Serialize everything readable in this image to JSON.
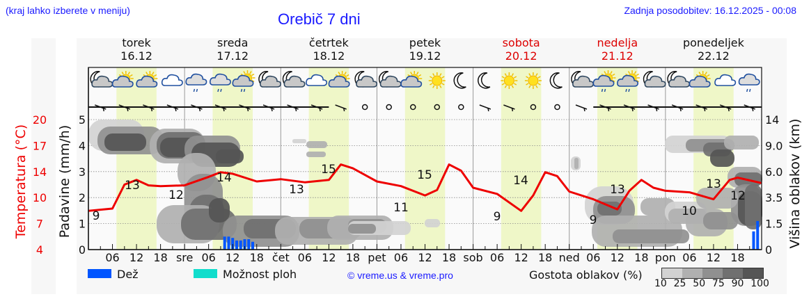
{
  "header": {
    "region_hint": "(kraj lahko izberete v meniju)",
    "title": "Orebič 7 dni",
    "last_update": "Zadnja posodobitev: 16.12.2025 - 00:08"
  },
  "days": [
    {
      "name": "torek",
      "date": "16.12",
      "weekend": false
    },
    {
      "name": "sreda",
      "date": "17.12",
      "weekend": false
    },
    {
      "name": "četrtek",
      "date": "18.12",
      "weekend": false
    },
    {
      "name": "petek",
      "date": "19.12",
      "weekend": false
    },
    {
      "name": "sobota",
      "date": "20.12",
      "weekend": true
    },
    {
      "name": "nedelja",
      "date": "21.12",
      "weekend": true
    },
    {
      "name": "ponedeljek",
      "date": "22.12",
      "weekend": false
    }
  ],
  "weather_icons": [
    "moon-cloud-icon",
    "sun-cloud-icon",
    "sun-cloud-icon",
    "cloud-icon",
    "cloud-rain-icon",
    "cloud-rain-icon",
    "sun-cloud-rain-icon",
    "moon-cloud-icon",
    "moon-cloud-icon",
    "cloud-icon",
    "sun-cloud-icon",
    "moon-cloud-icon",
    "moon-cloud-icon",
    "sun-cloud-icon",
    "sun-icon",
    "moon-icon",
    "moon-icon",
    "sun-icon",
    "sun-icon",
    "moon-icon",
    "moon-cloud-icon",
    "sun-cloud-rain-icon",
    "sun-cloud-rain-icon",
    "moon-cloud-icon",
    "moon-cloud-icon",
    "sun-cloud-icon",
    "cloud-icon",
    "cloud-rain-icon"
  ],
  "axes": {
    "temperature_label": "Temperatura (°C)",
    "temperature_ticks": [
      "20",
      "17",
      "14",
      "10",
      "7",
      "4"
    ],
    "precip_label": "Padavine (mm/h)",
    "precip_ticks": [
      "5",
      "4",
      "3",
      "2",
      "1",
      "0"
    ],
    "cloud_height_label": "Višina oblakov (km)",
    "cloud_height_ticks": [
      "14",
      "9.0",
      "6.0",
      "3.5",
      "1.5",
      "0"
    ],
    "x_ticks": [
      "06",
      "12",
      "18",
      "sre",
      "06",
      "12",
      "18",
      "čet",
      "06",
      "12",
      "18",
      "pet",
      "06",
      "12",
      "18",
      "sob",
      "06",
      "12",
      "18",
      "ned",
      "06",
      "12",
      "18",
      "pon",
      "06",
      "12",
      "18"
    ]
  },
  "legend": {
    "rain_label": "Dež",
    "rain_color": "#0055ff",
    "showers_label": "Možnost ploh",
    "showers_color": "#11ddcc",
    "copyright": "© vreme.us & vreme.pro",
    "cloud_density_label": "Gostota oblakov (%)",
    "cloud_density_ticks": [
      "10",
      "25",
      "50",
      "75",
      "90",
      "100"
    ],
    "cloud_density_colors": [
      "#d2d2d2",
      "#b0b0b0",
      "#909090",
      "#707070",
      "#555555"
    ]
  },
  "chart_data": {
    "type": "line",
    "title": "Orebič 7 dni",
    "xlabel": "",
    "ylabel": "Temperatura (°C)",
    "x_range": [
      "16.12 00:00",
      "22.12 24:00"
    ],
    "series": [
      {
        "name": "Temperatura (°C)",
        "color": "#ee0000",
        "hours": [
          0,
          6,
          9,
          12,
          15,
          18,
          24,
          30,
          33,
          36,
          42,
          48,
          54,
          60,
          63,
          66,
          72,
          78,
          84,
          87,
          90,
          93,
          96,
          102,
          108,
          111,
          114,
          117,
          120,
          126,
          132,
          135,
          138,
          141,
          144,
          150,
          156,
          160,
          162,
          168
        ],
        "values": [
          9,
          9.3,
          12.4,
          13,
          12.3,
          12.2,
          12.3,
          13.4,
          14,
          13.8,
          12.8,
          13.1,
          12.7,
          13,
          15,
          14.5,
          12.8,
          12.2,
          11,
          11.7,
          15,
          14.2,
          12,
          11.2,
          9,
          11,
          14,
          13.5,
          11.5,
          10.5,
          9.2,
          11.6,
          13,
          12,
          11.6,
          11.4,
          10.5,
          13,
          13.3,
          12.6
        ]
      },
      {
        "name": "Dež (mm/h)",
        "color": "#0055ff",
        "hours": [
          34,
          35,
          36,
          37,
          38,
          39,
          40,
          41,
          156,
          157,
          158,
          159,
          160,
          161,
          162,
          166,
          167
        ],
        "values": [
          0.5,
          0.5,
          0.45,
          0.35,
          0.35,
          0.4,
          0.4,
          0.3,
          0.02,
          0.02,
          0.02,
          0.02,
          0.02,
          0.02,
          0.02,
          0.7,
          1.1
        ]
      }
    ],
    "temperature_extremes": [
      {
        "day": "16.12",
        "min": 9,
        "max": 13
      },
      {
        "day": "17.12",
        "min": 12,
        "max": 14
      },
      {
        "day": "18.12",
        "min": 13,
        "max": 15
      },
      {
        "day": "19.12",
        "min": 11,
        "max": 15
      },
      {
        "day": "20.12",
        "min": 9,
        "max": 14
      },
      {
        "day": "21.12",
        "min": 9,
        "max": 13
      },
      {
        "day": "22.12",
        "min": 10,
        "max": 13
      },
      {
        "day": "22.12 late",
        "min": 12,
        "max": null
      }
    ],
    "y_axes": {
      "temperature": {
        "ticks": [
          20,
          17,
          14,
          10,
          7,
          4
        ]
      },
      "precipitation": {
        "range": [
          0,
          5
        ],
        "ticks": [
          0,
          1,
          2,
          3,
          4,
          5
        ]
      },
      "cloud_height_km": {
        "ticks": [
          0,
          1.5,
          3.5,
          6.0,
          9.0,
          14
        ]
      }
    },
    "grid": true,
    "daylight_shading": "#eff7c8"
  }
}
